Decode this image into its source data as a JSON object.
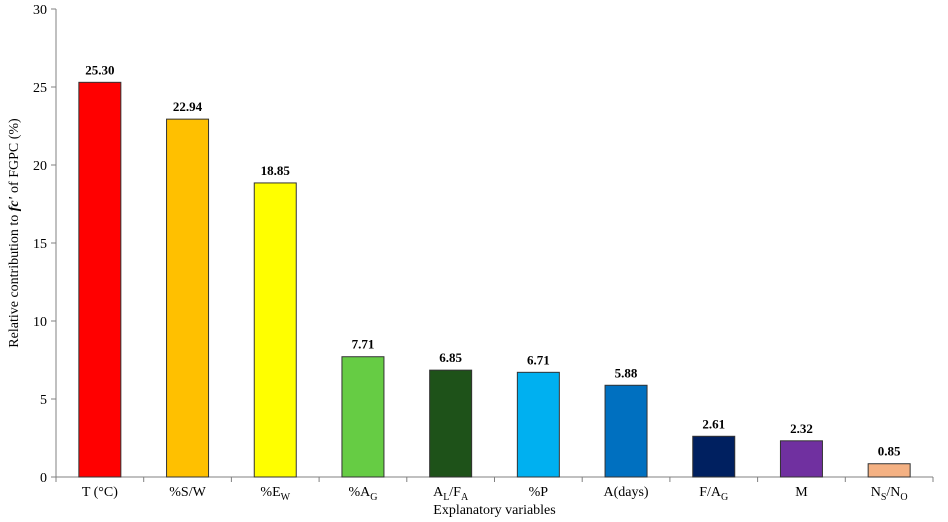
{
  "chart_data": {
    "type": "bar",
    "title": "",
    "xlabel": "Explanatory  variables",
    "ylabel_parts": [
      {
        "text": "Relative  contribution  to ",
        "italic": false
      },
      {
        "text": "fc'",
        "italic": true
      },
      {
        "text": " of FGPC (%)",
        "italic": false
      }
    ],
    "ylim": [
      0,
      30
    ],
    "yticks": [
      0,
      5,
      10,
      15,
      20,
      25,
      30
    ],
    "grid": false,
    "legend": "none",
    "categories": [
      {
        "parts": [
          {
            "t": "T (°C)",
            "sub": false
          }
        ]
      },
      {
        "parts": [
          {
            "t": "%S/W",
            "sub": false
          }
        ]
      },
      {
        "parts": [
          {
            "t": "%E",
            "sub": false
          },
          {
            "t": "W",
            "sub": true
          }
        ]
      },
      {
        "parts": [
          {
            "t": "%A",
            "sub": false
          },
          {
            "t": "G",
            "sub": true
          }
        ]
      },
      {
        "parts": [
          {
            "t": "A",
            "sub": false
          },
          {
            "t": "L",
            "sub": true
          },
          {
            "t": "/F",
            "sub": false
          },
          {
            "t": "A",
            "sub": true
          }
        ]
      },
      {
        "parts": [
          {
            "t": "%P",
            "sub": false
          }
        ]
      },
      {
        "parts": [
          {
            "t": "A(days)",
            "sub": false
          }
        ]
      },
      {
        "parts": [
          {
            "t": "F/A",
            "sub": false
          },
          {
            "t": "G",
            "sub": true
          }
        ]
      },
      {
        "parts": [
          {
            "t": "M",
            "sub": false
          }
        ]
      },
      {
        "parts": [
          {
            "t": "N",
            "sub": false
          },
          {
            "t": "S",
            "sub": true
          },
          {
            "t": "/N",
            "sub": false
          },
          {
            "t": "O",
            "sub": true
          }
        ]
      }
    ],
    "values": [
      25.3,
      22.94,
      18.85,
      7.71,
      6.85,
      6.71,
      5.88,
      2.61,
      2.32,
      0.85
    ],
    "value_labels": [
      "25.30",
      "22.94",
      "18.85",
      "7.71",
      "6.85",
      "6.71",
      "5.88",
      "2.61",
      "2.32",
      "0.85"
    ],
    "colors": [
      "#ff0000",
      "#ffc000",
      "#ffff00",
      "#66cc44",
      "#1e5219",
      "#00b0f0",
      "#0070c0",
      "#002060",
      "#7030a0",
      "#f4b183"
    ]
  }
}
